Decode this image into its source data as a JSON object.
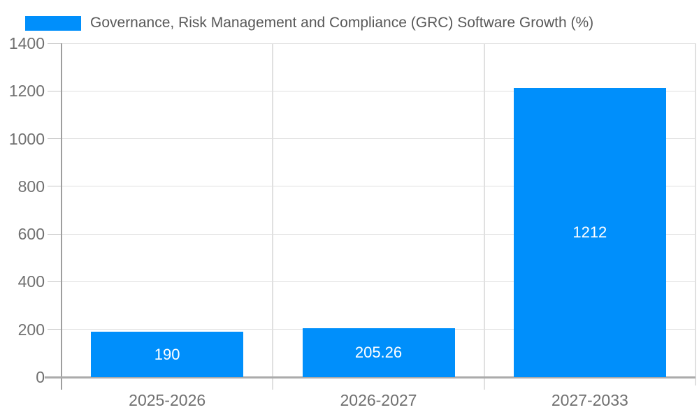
{
  "legend": {
    "label": "Governance, Risk Management and Compliance (GRC) Software Growth (%)"
  },
  "chart_data": {
    "type": "bar",
    "title": "Governance, Risk Management and Compliance (GRC) Software Growth (%)",
    "categories": [
      "2025-2026",
      "2026-2027",
      "2027-2033"
    ],
    "series": [
      {
        "name": "Governance, Risk Management and Compliance (GRC) Software Growth (%)",
        "values": [
          190,
          205.26,
          1212
        ]
      }
    ],
    "data_labels": [
      "190",
      "205.26",
      "1212"
    ],
    "xlabel": "",
    "ylabel": "",
    "ylim": [
      0,
      1400
    ],
    "yticks": [
      0,
      200,
      400,
      600,
      800,
      1000,
      1200,
      1400
    ],
    "grid": true,
    "legend_position": "top-left",
    "colors": {
      "bar": "#008FFB",
      "data_label": "#FFFFFF",
      "axis_label": "#707070",
      "legend_text": "#595959",
      "gridline": "#E0E0E0",
      "tick": "#C6C6C6",
      "axis_line": "#9E9E9E",
      "baseline": "#ABABAB"
    }
  }
}
